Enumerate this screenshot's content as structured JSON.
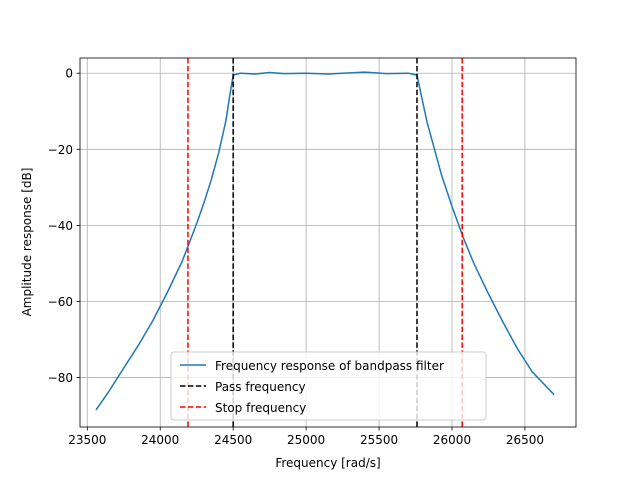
{
  "chart_data": {
    "type": "line",
    "title": "",
    "xlabel": "Frequency [rad/s]",
    "ylabel": "Amplitude response [dB]",
    "xlim": [
      23450,
      26850
    ],
    "ylim": [
      -93,
      4
    ],
    "xticks": [
      23500,
      24000,
      24500,
      25000,
      25500,
      26000,
      26500
    ],
    "yticks": [
      0,
      -20,
      -40,
      -60,
      -80
    ],
    "tick_labels_x": [
      "23500",
      "24000",
      "24500",
      "25000",
      "25500",
      "26000",
      "26500"
    ],
    "tick_labels_y": [
      "0",
      "−20",
      "−40",
      "−60",
      "−80"
    ],
    "grid": true,
    "legend_position": "lower-center",
    "series": [
      {
        "name": "Frequency response of bandpass filter",
        "color": "#1f77b4",
        "style": "solid",
        "points": [
          [
            23560,
            -88.5
          ],
          [
            23650,
            -83.5
          ],
          [
            23750,
            -77.5
          ],
          [
            23850,
            -71.5
          ],
          [
            23950,
            -65.0
          ],
          [
            24050,
            -57.5
          ],
          [
            24150,
            -49.5
          ],
          [
            24200,
            -44.5
          ],
          [
            24250,
            -39.5
          ],
          [
            24300,
            -34.0
          ],
          [
            24350,
            -28.0
          ],
          [
            24400,
            -21.0
          ],
          [
            24450,
            -12.5
          ],
          [
            24480,
            -5.0
          ],
          [
            24500,
            -0.5
          ],
          [
            24550,
            0.0
          ],
          [
            24650,
            -0.2
          ],
          [
            24750,
            0.2
          ],
          [
            24850,
            -0.1
          ],
          [
            25000,
            0.0
          ],
          [
            25150,
            -0.2
          ],
          [
            25250,
            0.0
          ],
          [
            25400,
            0.3
          ],
          [
            25550,
            -0.1
          ],
          [
            25700,
            0.0
          ],
          [
            25760,
            -0.5
          ],
          [
            25790,
            -6.0
          ],
          [
            25830,
            -13.0
          ],
          [
            25880,
            -20.0
          ],
          [
            25930,
            -27.0
          ],
          [
            26000,
            -35.0
          ],
          [
            26080,
            -43.5
          ],
          [
            26150,
            -50.0
          ],
          [
            26250,
            -58.0
          ],
          [
            26350,
            -65.5
          ],
          [
            26450,
            -72.5
          ],
          [
            26550,
            -78.5
          ],
          [
            26700,
            -84.5
          ]
        ]
      },
      {
        "name": "Pass frequency",
        "color": "#000000",
        "style": "dashed",
        "x_values": [
          24500,
          25760
        ]
      },
      {
        "name": "Stop frequency",
        "color": "#ff0000",
        "style": "dashed",
        "x_values": [
          24190,
          26070
        ]
      }
    ]
  }
}
